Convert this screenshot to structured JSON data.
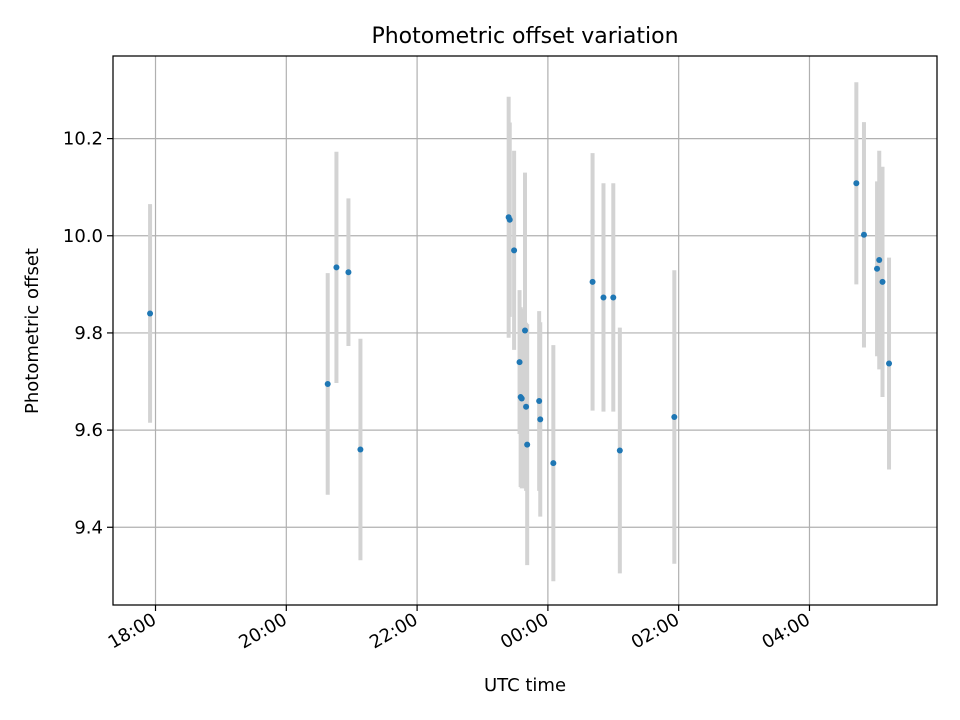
{
  "chart_data": {
    "type": "scatter",
    "title": "Photometric offset variation",
    "xlabel": "UTC time",
    "ylabel": "Photometric offset",
    "x_unit": "UTC clock time, observations spanning one night (evening to following morning)",
    "x_ticks": [
      "18:00",
      "20:00",
      "22:00",
      "00:00",
      "02:00",
      "04:00"
    ],
    "y_ticks": [
      "9.4",
      "9.6",
      "9.8",
      "10.0",
      "10.2"
    ],
    "xlim": [
      "17:21",
      "05:57"
    ],
    "ylim": [
      9.24,
      10.37
    ],
    "grid": true,
    "point_color": "#1f77b4",
    "errorbar_color": "#d3d3d3",
    "points": [
      {
        "x": "17:55",
        "y": 9.84,
        "err": 0.225
      },
      {
        "x": "20:38",
        "y": 9.695,
        "err": 0.228
      },
      {
        "x": "20:46",
        "y": 9.935,
        "err": 0.238
      },
      {
        "x": "20:57",
        "y": 9.925,
        "err": 0.152
      },
      {
        "x": "21:08",
        "y": 9.56,
        "err": 0.228
      },
      {
        "x": "23:24",
        "y": 10.038,
        "err": 0.248
      },
      {
        "x": "23:25",
        "y": 10.033,
        "err": 0.2
      },
      {
        "x": "23:29",
        "y": 9.97,
        "err": 0.205
      },
      {
        "x": "23:34",
        "y": 9.74,
        "err": 0.148
      },
      {
        "x": "23:35",
        "y": 9.668,
        "err": 0.185
      },
      {
        "x": "23:36",
        "y": 9.665,
        "err": 0.185
      },
      {
        "x": "23:39",
        "y": 9.805,
        "err": 0.325
      },
      {
        "x": "23:40",
        "y": 9.648,
        "err": 0.173
      },
      {
        "x": "23:41",
        "y": 9.57,
        "err": 0.248
      },
      {
        "x": "23:52",
        "y": 9.66,
        "err": 0.185
      },
      {
        "x": "23:53",
        "y": 9.622,
        "err": 0.2
      },
      {
        "x": "00:05",
        "y": 9.532,
        "err": 0.243
      },
      {
        "x": "00:41",
        "y": 9.905,
        "err": 0.265
      },
      {
        "x": "00:51",
        "y": 9.873,
        "err": 0.235
      },
      {
        "x": "01:00",
        "y": 9.873,
        "err": 0.235
      },
      {
        "x": "01:06",
        "y": 9.558,
        "err": 0.253
      },
      {
        "x": "01:56",
        "y": 9.627,
        "err": 0.302
      },
      {
        "x": "04:43",
        "y": 10.108,
        "err": 0.208
      },
      {
        "x": "04:50",
        "y": 10.002,
        "err": 0.232
      },
      {
        "x": "05:02",
        "y": 9.932,
        "err": 0.18
      },
      {
        "x": "05:04",
        "y": 9.95,
        "err": 0.225
      },
      {
        "x": "05:07",
        "y": 9.905,
        "err": 0.237
      },
      {
        "x": "05:13",
        "y": 9.737,
        "err": 0.218
      }
    ]
  }
}
